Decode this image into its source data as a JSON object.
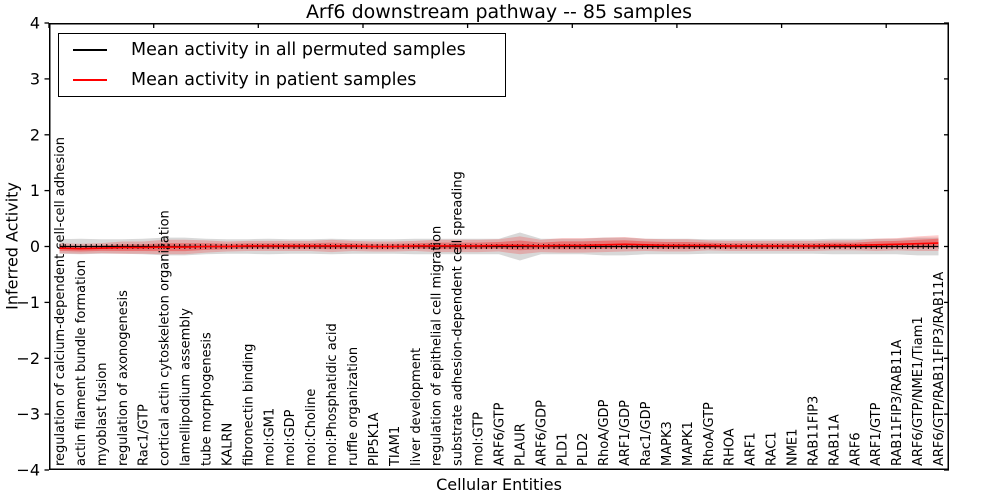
{
  "figure": {
    "title": "Arf6 downstream pathway -- 85 samples",
    "xlabel": "Cellular Entities",
    "ylabel": "Inferred Activity"
  },
  "legend": {
    "items": [
      {
        "label": "Mean activity in all permuted samples",
        "color": "#000000"
      },
      {
        "label": "Mean activity in patient samples",
        "color": "#ff0000"
      }
    ]
  },
  "colors": {
    "permuted_line": "#000000",
    "patient_line": "#ff0000",
    "permuted_band": "#999999",
    "patient_band": "#ff0000",
    "axis": "#000000"
  },
  "chart_data": {
    "type": "line",
    "title": "Arf6 downstream pathway -- 85 samples",
    "xlabel": "Cellular Entities",
    "ylabel": "Inferred Activity",
    "ylim": [
      -4,
      4
    ],
    "yticks": [
      -4,
      -3,
      -2,
      -1,
      0,
      1,
      2,
      3,
      4
    ],
    "xticks": [
      0,
      5,
      10,
      15,
      20,
      25,
      30,
      35,
      40
    ],
    "grid": false,
    "legend_position": "upper left",
    "categories": [
      "regulation of calcium-dependent cell-cell adhesion",
      "actin filament bundle formation",
      "myoblast fusion",
      "regulation of axonogenesis",
      "Rac1/GTP",
      "cortical actin cytoskeleton organization",
      "lamellipodium assembly",
      "tube morphogenesis",
      "KALRN",
      "fibronectin binding",
      "mol:GM1",
      "mol:GDP",
      "mol:Choline",
      "mol:Phosphatidic acid",
      "ruffle organization",
      "PIP5K1A",
      "TIAM1",
      "liver development",
      "regulation of epithelial cell migration",
      "substrate adhesion-dependent cell spreading",
      "mol:GTP",
      "ARF6/GTP",
      "PLAUR",
      "ARF6/GDP",
      "PLD1",
      "PLD2",
      "RhoA/GDP",
      "ARF1/GDP",
      "Rac1/GDP",
      "MAPK3",
      "MAPK1",
      "RhoA/GTP",
      "RHOA",
      "ARF1",
      "RAC1",
      "NME1",
      "RAB11FIP3",
      "RAB11A",
      "ARF6",
      "ARF1/GTP",
      "RAB11FIP3/RAB11A",
      "ARF6/GTP/NME1/Tiam1",
      "ARF6/GTP/RAB11FIP3/RAB11A"
    ],
    "series": [
      {
        "name": "Mean activity in all permuted samples",
        "color": "#000000",
        "values": [
          0,
          0,
          0,
          0,
          0,
          0,
          0,
          0,
          0,
          0,
          0,
          0,
          0,
          0,
          0,
          0,
          0,
          0,
          0,
          0,
          0,
          0,
          0,
          0,
          0,
          0,
          0,
          0,
          0,
          0,
          0,
          0,
          0,
          0,
          0,
          0,
          0,
          0,
          0,
          0,
          0,
          0,
          0
        ],
        "band_halfwidth": [
          0.13,
          0.14,
          0.13,
          0.13,
          0.14,
          0.16,
          0.16,
          0.14,
          0.13,
          0.13,
          0.14,
          0.13,
          0.13,
          0.14,
          0.13,
          0.13,
          0.13,
          0.14,
          0.14,
          0.14,
          0.14,
          0.14,
          0.25,
          0.14,
          0.14,
          0.14,
          0.16,
          0.16,
          0.14,
          0.14,
          0.14,
          0.13,
          0.13,
          0.13,
          0.13,
          0.13,
          0.13,
          0.14,
          0.14,
          0.14,
          0.14,
          0.16,
          0.16
        ]
      },
      {
        "name": "Mean activity in patient samples",
        "color": "#ff0000",
        "values": [
          -0.03,
          -0.04,
          -0.03,
          -0.02,
          -0.02,
          -0.01,
          -0.01,
          0,
          0,
          0.01,
          0.01,
          0.01,
          0.01,
          0.01,
          0.01,
          0,
          0,
          0.01,
          0.01,
          0.01,
          0.01,
          0.02,
          0.02,
          0.01,
          0.02,
          0.02,
          0.03,
          0.04,
          0.03,
          0.02,
          0.02,
          0.02,
          0.01,
          0.01,
          0.01,
          0.01,
          0.01,
          0.02,
          0.02,
          0.03,
          0.04,
          0.05,
          0.06
        ],
        "band_halfwidth": [
          0.09,
          0.09,
          0.09,
          0.11,
          0.11,
          0.13,
          0.13,
          0.11,
          0.09,
          0.09,
          0.09,
          0.09,
          0.09,
          0.11,
          0.09,
          0.09,
          0.09,
          0.09,
          0.11,
          0.11,
          0.11,
          0.11,
          0.16,
          0.11,
          0.13,
          0.13,
          0.13,
          0.13,
          0.11,
          0.11,
          0.11,
          0.09,
          0.09,
          0.09,
          0.09,
          0.09,
          0.09,
          0.09,
          0.09,
          0.11,
          0.11,
          0.13,
          0.14
        ]
      }
    ]
  }
}
